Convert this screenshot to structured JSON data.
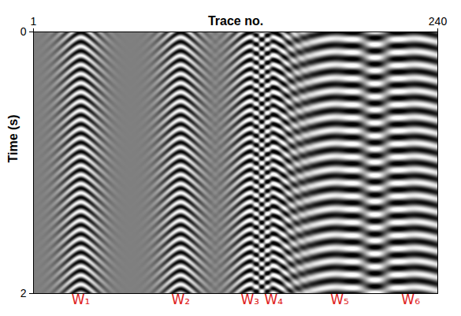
{
  "chart_data": {
    "type": "seismic",
    "x_label": "Trace no.",
    "y_label": "Time (s)",
    "xlim": [
      1,
      240
    ],
    "xticks": [
      1,
      240
    ],
    "ylim": [
      0,
      2
    ],
    "yticks": [
      0,
      2
    ],
    "events": [
      {
        "label": "W₁",
        "trace": 29,
        "period": 0.07
      },
      {
        "label": "W₂",
        "trace": 88,
        "period": 0.07
      },
      {
        "label": "W₃",
        "trace": 129,
        "period": 0.07
      },
      {
        "label": "W₄",
        "trace": 143,
        "period": 0.07
      },
      {
        "label": "W₅",
        "trace": 182,
        "period": 0.1
      },
      {
        "label": "W₆",
        "trace": 224,
        "period": 0.1
      }
    ]
  }
}
